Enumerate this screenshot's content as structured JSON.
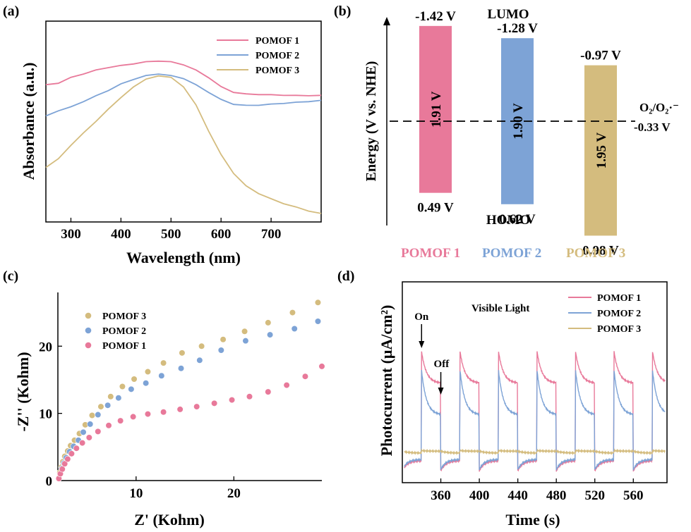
{
  "colors": {
    "pomof1": "#E8799A",
    "pomof2": "#7DA3D6",
    "pomof3": "#D4BC7E"
  },
  "legend_row": [
    "POMOF 1",
    "POMOF 2",
    "POMOF 3"
  ],
  "chart_data": [
    {
      "panel": "(a)",
      "type": "line",
      "xlabel": "Wavelength (nm)",
      "ylabel": "Absorbance (a.u.)",
      "xlim": [
        250,
        800
      ],
      "xticks": [
        "300",
        "400",
        "500",
        "600",
        "700"
      ],
      "y_tick_labels": false,
      "legend_position": "top-right",
      "x": [
        250,
        275,
        300,
        325,
        350,
        375,
        400,
        425,
        450,
        475,
        500,
        525,
        550,
        575,
        600,
        625,
        650,
        675,
        700,
        725,
        750,
        775,
        800
      ],
      "series": [
        {
          "name": "POMOF 1",
          "values": [
            0.73,
            0.74,
            0.77,
            0.79,
            0.81,
            0.825,
            0.835,
            0.845,
            0.855,
            0.86,
            0.855,
            0.84,
            0.81,
            0.77,
            0.72,
            0.69,
            0.68,
            0.678,
            0.676,
            0.674,
            0.672,
            0.672,
            0.672
          ]
        },
        {
          "name": "POMOF 2",
          "values": [
            0.56,
            0.59,
            0.61,
            0.64,
            0.67,
            0.7,
            0.735,
            0.76,
            0.78,
            0.79,
            0.78,
            0.765,
            0.73,
            0.69,
            0.65,
            0.625,
            0.618,
            0.62,
            0.625,
            0.63,
            0.635,
            0.64,
            0.645
          ]
        },
        {
          "name": "POMOF 3",
          "values": [
            0.28,
            0.33,
            0.4,
            0.47,
            0.53,
            0.6,
            0.66,
            0.72,
            0.76,
            0.78,
            0.77,
            0.72,
            0.62,
            0.48,
            0.35,
            0.25,
            0.18,
            0.14,
            0.11,
            0.085,
            0.065,
            0.045,
            0.03
          ]
        }
      ]
    },
    {
      "panel": "(b)",
      "type": "bar",
      "ylabel": "Energy (V vs. NHE)",
      "top_label": "LUMO",
      "bottom_label": "HOMO",
      "reference_line": {
        "value": -0.33,
        "label_species": "O₂/O₂·⁻",
        "label_value": "-0.33 V"
      },
      "categories": [
        "POMOF 1",
        "POMOF 2",
        "POMOF 3"
      ],
      "lumo": [
        -1.42,
        -1.28,
        -0.97
      ],
      "homo": [
        0.49,
        0.62,
        0.98
      ],
      "lumo_labels": [
        "-1.42 V",
        "-1.28 V",
        "-0.97 V"
      ],
      "homo_labels": [
        "0.49 V",
        "0.62 V",
        "0.98 V"
      ],
      "gap_labels": [
        "1.91 V",
        "1.90 V",
        "1.95 V"
      ]
    },
    {
      "panel": "(c)",
      "type": "scatter",
      "xlabel": "Z' (Kohm)",
      "ylabel": "-Z'' (Kohm)",
      "xlim": [
        2,
        29
      ],
      "ylim": [
        0,
        28
      ],
      "xticks": [
        10,
        20
      ],
      "yticks": [
        0,
        10,
        20
      ],
      "legend_position": "top-left",
      "series": [
        {
          "name": "POMOF 3",
          "x": [
            2.1,
            2.2,
            2.35,
            2.5,
            2.7,
            3.0,
            3.3,
            3.7,
            4.2,
            4.8,
            5.5,
            6.4,
            7.4,
            8.6,
            9.8,
            11.2,
            12.8,
            14.7,
            16.7,
            18.9,
            21.1,
            23.5,
            26.0,
            28.6
          ],
          "y": [
            0.4,
            1.2,
            2.0,
            2.8,
            3.6,
            4.4,
            5.2,
            6.0,
            7.0,
            8.3,
            9.7,
            11.0,
            12.5,
            14.0,
            15.1,
            16.2,
            17.5,
            19.0,
            20.0,
            21.0,
            22.2,
            23.5,
            25.0,
            26.5
          ]
        },
        {
          "name": "POMOF 2",
          "x": [
            2.1,
            2.25,
            2.4,
            2.6,
            2.85,
            3.2,
            3.6,
            4.1,
            4.6,
            5.3,
            6.1,
            7.1,
            8.2,
            9.5,
            11.0,
            12.6,
            14.6,
            16.5,
            18.7,
            21.2,
            23.7,
            26.2,
            28.6
          ],
          "y": [
            0.3,
            1.0,
            1.8,
            2.6,
            3.4,
            4.3,
            5.1,
            6.0,
            7.2,
            8.4,
            9.8,
            11.2,
            12.3,
            13.6,
            14.5,
            15.6,
            16.7,
            17.9,
            19.4,
            20.8,
            21.7,
            22.6,
            23.7
          ]
        },
        {
          "name": "POMOF 1",
          "x": [
            2.1,
            2.25,
            2.45,
            2.7,
            3.0,
            3.4,
            3.9,
            4.5,
            5.2,
            6.1,
            7.2,
            8.4,
            9.7,
            11.2,
            12.8,
            14.5,
            16.2,
            18.0,
            19.8,
            21.6,
            23.5,
            25.4,
            27.3,
            29.0
          ],
          "y": [
            0.3,
            1.0,
            1.7,
            2.5,
            3.2,
            4.0,
            4.8,
            5.6,
            6.4,
            7.3,
            8.2,
            8.9,
            9.5,
            9.9,
            10.2,
            10.6,
            11.0,
            11.5,
            12.0,
            12.5,
            13.2,
            14.2,
            15.5,
            17.0
          ]
        }
      ]
    },
    {
      "panel": "(d)",
      "type": "line",
      "xlabel": "Time (s)",
      "ylabel": "Photocurrent (μA/cm²)",
      "xlim": [
        320,
        595
      ],
      "xticks": [
        "360",
        "400",
        "440",
        "480",
        "520",
        "560"
      ],
      "y_tick_labels": false,
      "annotation": "Visible Light",
      "on_label": "On",
      "off_label": "Off",
      "on_time": 340,
      "off_time": 360,
      "cycle_period_s": 40,
      "legend_position": "top-right",
      "series": [
        {
          "name": "POMOF 1",
          "on_peak": 0.95,
          "on_steady": 0.7,
          "off_level": 0.09
        },
        {
          "name": "POMOF 2",
          "on_peak": 0.8,
          "on_steady": 0.45,
          "off_level": 0.1
        },
        {
          "name": "POMOF 3",
          "on_peak": 0.17,
          "on_steady": 0.165,
          "off_level": 0.15
        }
      ]
    }
  ]
}
